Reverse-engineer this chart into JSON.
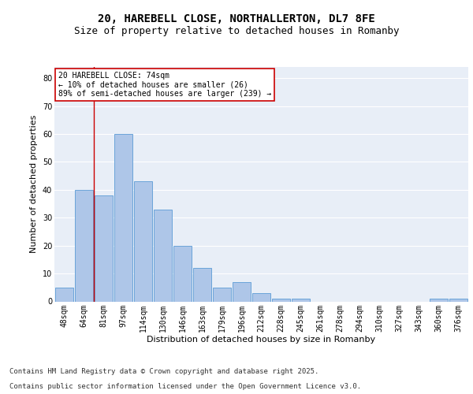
{
  "title1": "20, HAREBELL CLOSE, NORTHALLERTON, DL7 8FE",
  "title2": "Size of property relative to detached houses in Romanby",
  "xlabel": "Distribution of detached houses by size in Romanby",
  "ylabel": "Number of detached properties",
  "bar_labels": [
    "48sqm",
    "64sqm",
    "81sqm",
    "97sqm",
    "114sqm",
    "130sqm",
    "146sqm",
    "163sqm",
    "179sqm",
    "196sqm",
    "212sqm",
    "228sqm",
    "245sqm",
    "261sqm",
    "278sqm",
    "294sqm",
    "310sqm",
    "327sqm",
    "343sqm",
    "360sqm",
    "376sqm"
  ],
  "bar_values": [
    5,
    40,
    38,
    60,
    43,
    33,
    20,
    12,
    5,
    7,
    3,
    1,
    1,
    0,
    0,
    0,
    0,
    0,
    0,
    1,
    1
  ],
  "bar_color": "#aec6e8",
  "bar_edge_color": "#5b9bd5",
  "vline_x": 1.5,
  "vline_color": "#cc0000",
  "ylim": [
    0,
    84
  ],
  "yticks": [
    0,
    10,
    20,
    30,
    40,
    50,
    60,
    70,
    80
  ],
  "annotation_text": "20 HAREBELL CLOSE: 74sqm\n← 10% of detached houses are smaller (26)\n89% of semi-detached houses are larger (239) →",
  "annotation_box_color": "#ffffff",
  "annotation_box_edge": "#cc0000",
  "footnote1": "Contains HM Land Registry data © Crown copyright and database right 2025.",
  "footnote2": "Contains public sector information licensed under the Open Government Licence v3.0.",
  "bg_color": "#e8eef7",
  "fig_bg_color": "#ffffff",
  "grid_color": "#ffffff",
  "title_fontsize": 10,
  "subtitle_fontsize": 9,
  "axis_label_fontsize": 8,
  "tick_fontsize": 7,
  "annotation_fontsize": 7,
  "footnote_fontsize": 6.5
}
